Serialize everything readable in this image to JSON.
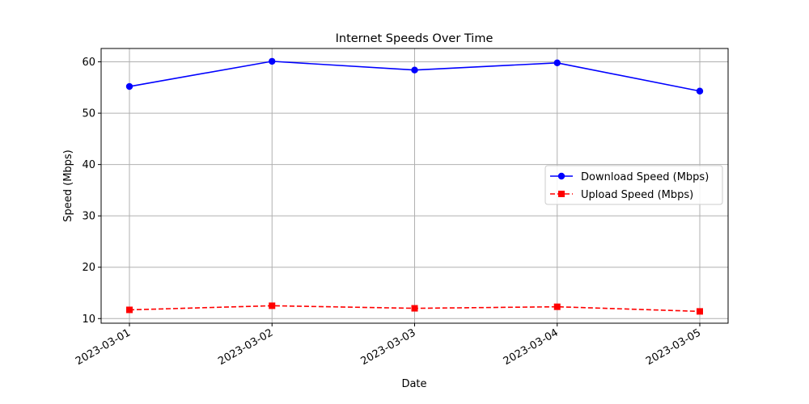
{
  "chart_data": {
    "type": "line",
    "title": "Internet Speeds Over Time",
    "xlabel": "Date",
    "ylabel": "Speed (Mbps)",
    "x": [
      "2023-03-01",
      "2023-03-02",
      "2023-03-03",
      "2023-03-04",
      "2023-03-05"
    ],
    "ylim": [
      9.1,
      62.6
    ],
    "yticks": [
      10,
      20,
      30,
      40,
      50,
      60
    ],
    "grid": true,
    "legend_position": "center-right",
    "series": [
      {
        "name": "Download Speed (Mbps)",
        "values": [
          55.2,
          60.1,
          58.4,
          59.8,
          54.3
        ],
        "color": "#0000ff",
        "line_style": "solid",
        "marker": "circle"
      },
      {
        "name": "Upload Speed (Mbps)",
        "values": [
          11.7,
          12.5,
          12.0,
          12.3,
          11.4
        ],
        "color": "#ff0000",
        "line_style": "dashed",
        "marker": "square"
      }
    ]
  }
}
